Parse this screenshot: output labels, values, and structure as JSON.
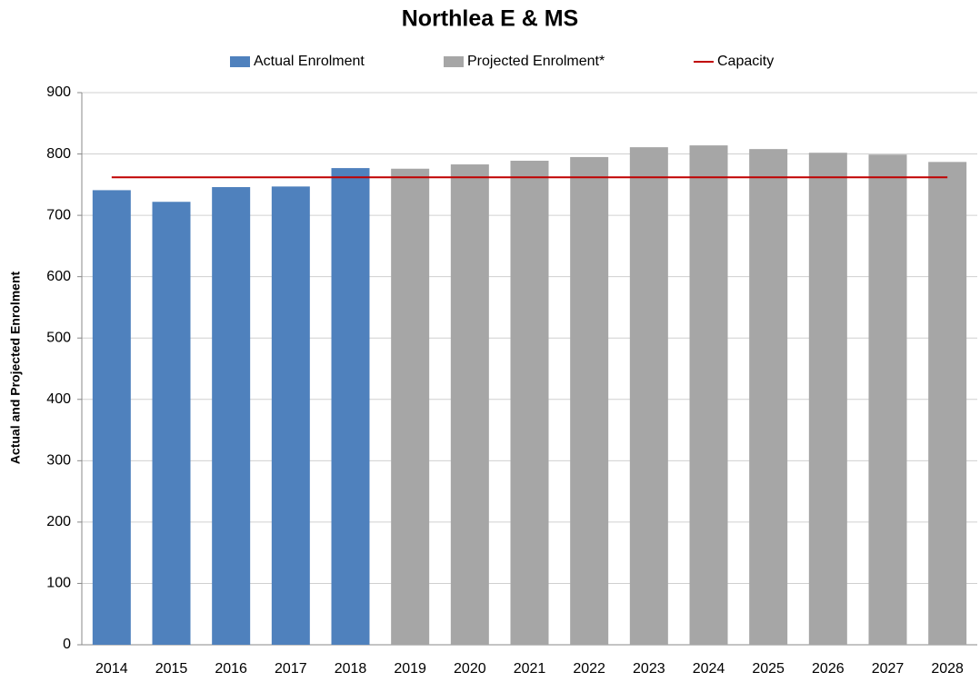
{
  "chart_data": {
    "type": "bar",
    "title": "Northlea E & MS",
    "y_label": "Actual and Projected Enrolment",
    "categories": [
      "2014",
      "2015",
      "2016",
      "2017",
      "2018",
      "2019",
      "2020",
      "2021",
      "2022",
      "2023",
      "2024",
      "2025",
      "2026",
      "2027",
      "2028"
    ],
    "series": [
      {
        "name": "Actual Enrolment",
        "color": "#4f81bd",
        "values": [
          741,
          722,
          746,
          747,
          777,
          null,
          null,
          null,
          null,
          null,
          null,
          null,
          null,
          null,
          null
        ]
      },
      {
        "name": "Projected Enrolment*",
        "color": "#a6a6a6",
        "values": [
          null,
          null,
          null,
          null,
          null,
          776,
          783,
          789,
          795,
          811,
          814,
          808,
          802,
          799,
          787
        ]
      },
      {
        "name": "Capacity",
        "color": "#c00000",
        "kind": "line",
        "values": [
          762,
          762,
          762,
          762,
          762,
          762,
          762,
          762,
          762,
          762,
          762,
          762,
          762,
          762,
          762
        ]
      }
    ],
    "ylim": [
      0,
      900
    ],
    "yticks": [
      0,
      100,
      200,
      300,
      400,
      500,
      600,
      700,
      800,
      900
    ],
    "grid": true,
    "legend": "top"
  }
}
